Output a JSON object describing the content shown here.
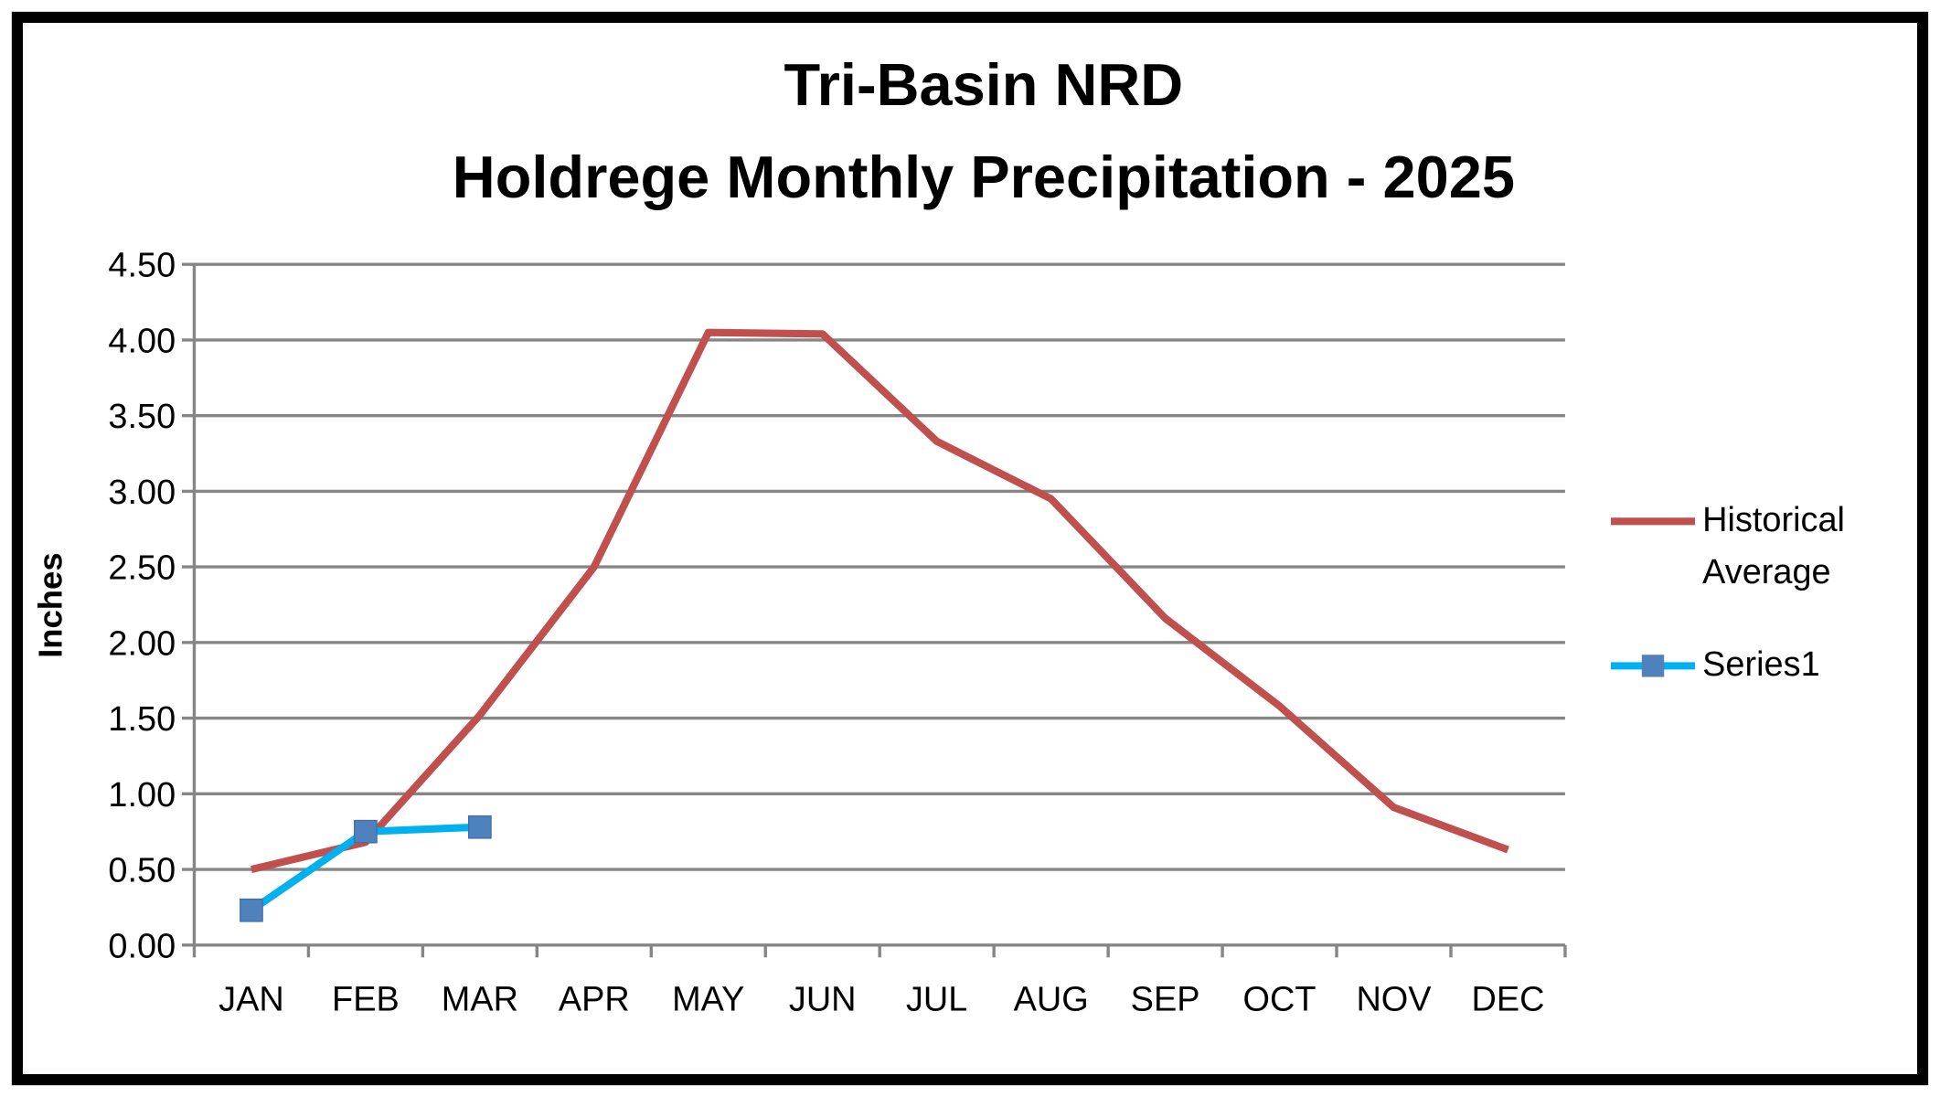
{
  "chart_data": {
    "type": "line",
    "title": [
      "Tri-Basin NRD",
      "Holdrege Monthly Precipitation - 2025"
    ],
    "y_label": "Inches",
    "categories": [
      "JAN",
      "FEB",
      "MAR",
      "APR",
      "MAY",
      "JUN",
      "JUL",
      "AUG",
      "SEP",
      "OCT",
      "NOV",
      "DEC"
    ],
    "series": [
      {
        "name": "Historical Average",
        "color": "#c0504d",
        "values": [
          0.5,
          0.68,
          1.52,
          2.5,
          4.05,
          4.04,
          3.33,
          2.95,
          2.16,
          1.58,
          0.91,
          0.63
        ]
      },
      {
        "name": "Series1",
        "color": "#00b0f0",
        "marker_color": "#4f81bd",
        "marker": "square",
        "values": [
          0.23,
          0.75,
          0.78,
          null,
          null,
          null,
          null,
          null,
          null,
          null,
          null,
          null
        ]
      }
    ],
    "ylim": [
      0,
      4.5
    ],
    "yticks": [
      {
        "value": 0,
        "label": "0.00"
      },
      {
        "value": 0.5,
        "label": "0.50"
      },
      {
        "value": 1,
        "label": "1.00"
      },
      {
        "value": 1.5,
        "label": "1.50"
      },
      {
        "value": 2,
        "label": "2.00"
      },
      {
        "value": 2.5,
        "label": "2.50"
      },
      {
        "value": 3,
        "label": "3.00"
      },
      {
        "value": 3.5,
        "label": "3.50"
      },
      {
        "value": 4,
        "label": "4.00"
      },
      {
        "value": 4.5,
        "label": "4.50"
      }
    ],
    "grid": true,
    "legend": "right"
  }
}
